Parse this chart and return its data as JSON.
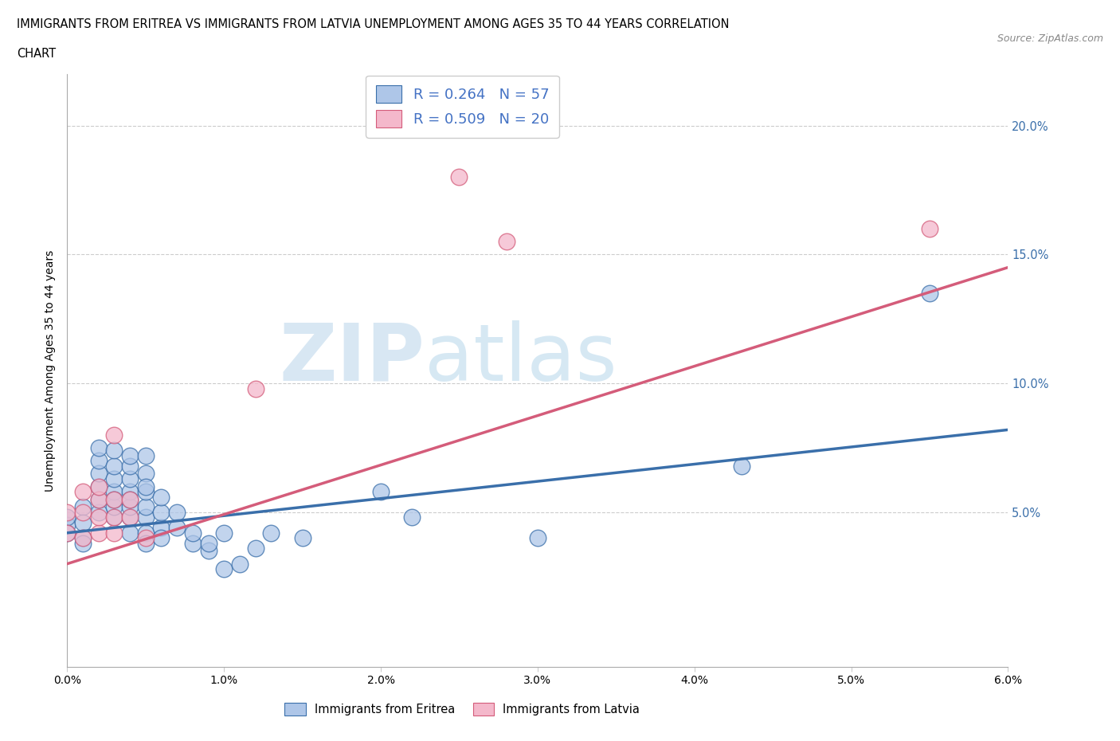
{
  "title_line1": "IMMIGRANTS FROM ERITREA VS IMMIGRANTS FROM LATVIA UNEMPLOYMENT AMONG AGES 35 TO 44 YEARS CORRELATION",
  "title_line2": "CHART",
  "source": "Source: ZipAtlas.com",
  "ylabel": "Unemployment Among Ages 35 to 44 years",
  "xlim": [
    0.0,
    0.06
  ],
  "ylim": [
    -0.01,
    0.22
  ],
  "yticks": [
    0.05,
    0.1,
    0.15,
    0.2
  ],
  "ytick_labels": [
    "5.0%",
    "10.0%",
    "15.0%",
    "20.0%"
  ],
  "xticks": [
    0.0,
    0.01,
    0.02,
    0.03,
    0.04,
    0.05,
    0.06
  ],
  "xtick_labels": [
    "0.0%",
    "1.0%",
    "2.0%",
    "3.0%",
    "4.0%",
    "5.0%",
    "6.0%"
  ],
  "color_eritrea": "#aec6e8",
  "color_latvia": "#f4b8cb",
  "line_color_eritrea": "#3a6faa",
  "line_color_latvia": "#d45c7a",
  "R_eritrea": 0.264,
  "N_eritrea": 57,
  "R_latvia": 0.509,
  "N_latvia": 20,
  "watermark_zip": "ZIP",
  "watermark_atlas": "atlas",
  "legend_R_color": "#4472c4",
  "eritrea_scatter": [
    [
      0.0,
      0.045
    ],
    [
      0.0,
      0.048
    ],
    [
      0.0,
      0.042
    ],
    [
      0.001,
      0.052
    ],
    [
      0.001,
      0.046
    ],
    [
      0.001,
      0.04
    ],
    [
      0.001,
      0.038
    ],
    [
      0.002,
      0.05
    ],
    [
      0.002,
      0.055
    ],
    [
      0.002,
      0.06
    ],
    [
      0.002,
      0.065
    ],
    [
      0.002,
      0.07
    ],
    [
      0.002,
      0.075
    ],
    [
      0.003,
      0.048
    ],
    [
      0.003,
      0.052
    ],
    [
      0.003,
      0.058
    ],
    [
      0.003,
      0.063
    ],
    [
      0.003,
      0.068
    ],
    [
      0.003,
      0.074
    ],
    [
      0.003,
      0.055
    ],
    [
      0.004,
      0.042
    ],
    [
      0.004,
      0.048
    ],
    [
      0.004,
      0.052
    ],
    [
      0.004,
      0.058
    ],
    [
      0.004,
      0.063
    ],
    [
      0.004,
      0.068
    ],
    [
      0.004,
      0.055
    ],
    [
      0.004,
      0.072
    ],
    [
      0.005,
      0.042
    ],
    [
      0.005,
      0.048
    ],
    [
      0.005,
      0.052
    ],
    [
      0.005,
      0.058
    ],
    [
      0.005,
      0.065
    ],
    [
      0.005,
      0.072
    ],
    [
      0.005,
      0.038
    ],
    [
      0.005,
      0.06
    ],
    [
      0.006,
      0.044
    ],
    [
      0.006,
      0.05
    ],
    [
      0.006,
      0.056
    ],
    [
      0.006,
      0.04
    ],
    [
      0.007,
      0.044
    ],
    [
      0.007,
      0.05
    ],
    [
      0.008,
      0.038
    ],
    [
      0.008,
      0.042
    ],
    [
      0.009,
      0.035
    ],
    [
      0.009,
      0.038
    ],
    [
      0.01,
      0.028
    ],
    [
      0.01,
      0.042
    ],
    [
      0.011,
      0.03
    ],
    [
      0.012,
      0.036
    ],
    [
      0.013,
      0.042
    ],
    [
      0.015,
      0.04
    ],
    [
      0.02,
      0.058
    ],
    [
      0.022,
      0.048
    ],
    [
      0.03,
      0.04
    ],
    [
      0.043,
      0.068
    ],
    [
      0.055,
      0.135
    ]
  ],
  "latvia_scatter": [
    [
      0.0,
      0.042
    ],
    [
      0.0,
      0.05
    ],
    [
      0.001,
      0.04
    ],
    [
      0.001,
      0.05
    ],
    [
      0.001,
      0.058
    ],
    [
      0.002,
      0.042
    ],
    [
      0.002,
      0.048
    ],
    [
      0.002,
      0.055
    ],
    [
      0.002,
      0.06
    ],
    [
      0.003,
      0.042
    ],
    [
      0.003,
      0.048
    ],
    [
      0.003,
      0.055
    ],
    [
      0.003,
      0.08
    ],
    [
      0.004,
      0.048
    ],
    [
      0.004,
      0.055
    ],
    [
      0.005,
      0.04
    ],
    [
      0.012,
      0.098
    ],
    [
      0.025,
      0.18
    ],
    [
      0.028,
      0.155
    ],
    [
      0.055,
      0.16
    ]
  ],
  "eritrea_line_x": [
    0.0,
    0.06
  ],
  "eritrea_line_y": [
    0.042,
    0.082
  ],
  "latvia_line_x": [
    0.0,
    0.06
  ],
  "latvia_line_y": [
    0.03,
    0.145
  ]
}
